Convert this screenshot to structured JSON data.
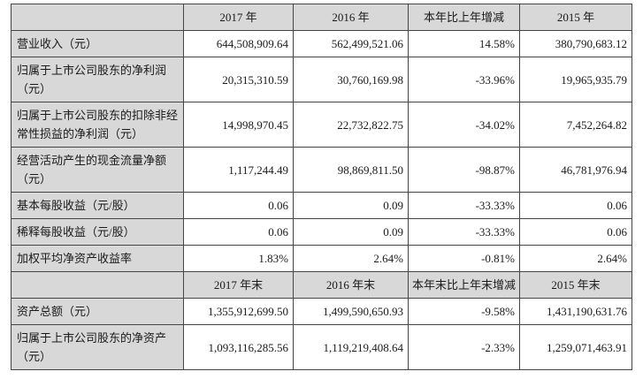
{
  "colors": {
    "table_border": "#454545",
    "shaded_cell_bg": "#d8d8d8",
    "data_cell_bg": "#ffffff",
    "text": "#1a1a1a"
  },
  "table": {
    "sections": [
      {
        "header": {
          "corner": "",
          "columns": [
            "2017 年",
            "2016 年",
            "本年比上年增减",
            "2015 年"
          ]
        },
        "rows": [
          {
            "label": "营业收入（元）",
            "values": [
              "644,508,909.64",
              "562,499,521.06",
              "14.58%",
              "380,790,683.12"
            ]
          },
          {
            "label": "归属于上市公司股东的净利润（元）",
            "values": [
              "20,315,310.59",
              "30,760,169.98",
              "-33.96%",
              "19,965,935.79"
            ]
          },
          {
            "label": "归属于上市公司股东的扣除非经常性损益的净利润（元）",
            "values": [
              "14,998,970.45",
              "22,732,822.75",
              "-34.02%",
              "7,452,264.82"
            ]
          },
          {
            "label": "经营活动产生的现金流量净额（元）",
            "values": [
              "1,117,244.49",
              "98,869,811.50",
              "-98.87%",
              "46,781,976.94"
            ]
          },
          {
            "label": "基本每股收益（元/股）",
            "values": [
              "0.06",
              "0.09",
              "-33.33%",
              "0.06"
            ]
          },
          {
            "label": "稀释每股收益（元/股）",
            "values": [
              "0.06",
              "0.09",
              "-33.33%",
              "0.06"
            ]
          },
          {
            "label": "加权平均净资产收益率",
            "values": [
              "1.83%",
              "2.64%",
              "-0.81%",
              "2.64%"
            ]
          }
        ]
      },
      {
        "header": {
          "corner": "",
          "columns": [
            "2017 年末",
            "2016 年末",
            "本年末比上年末增减",
            "2015 年末"
          ]
        },
        "rows": [
          {
            "label": "资产总额（元）",
            "values": [
              "1,355,912,699.50",
              "1,499,590,650.93",
              "-9.58%",
              "1,431,190,631.76"
            ]
          },
          {
            "label": "归属于上市公司股东的净资产（元）",
            "values": [
              "1,093,116,285.56",
              "1,119,219,408.64",
              "-2.33%",
              "1,259,071,463.91"
            ]
          }
        ]
      }
    ]
  }
}
